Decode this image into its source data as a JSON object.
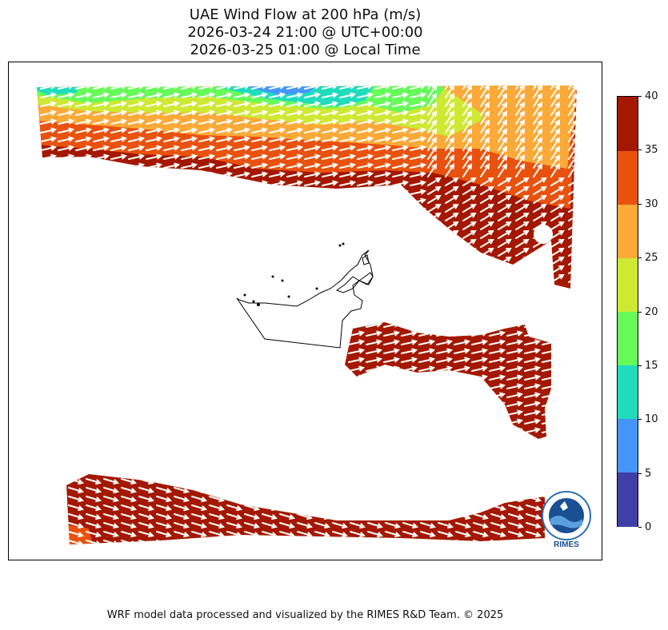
{
  "title": {
    "line1": "UAE Wind Flow at 200 hPa (m/s)",
    "line2": "2026-03-24 21:00 @ UTC+00:00",
    "line3": "2026-03-25 01:00 @ Local Time"
  },
  "colorbar": {
    "ticks": [
      "0",
      "5",
      "10",
      "15",
      "20",
      "25",
      "30",
      "35",
      "40"
    ],
    "colors": [
      "#3f3fa6",
      "#4595fb",
      "#1fdcbd",
      "#66fb59",
      "#cde932",
      "#fca937",
      "#e9520e",
      "#a41800"
    ]
  },
  "logo": {
    "text": "RIMES",
    "icon": "rimes-logo-icon"
  },
  "footer": "WRF model data processed and visualized by the RIMES R&D Team. © 2025"
}
